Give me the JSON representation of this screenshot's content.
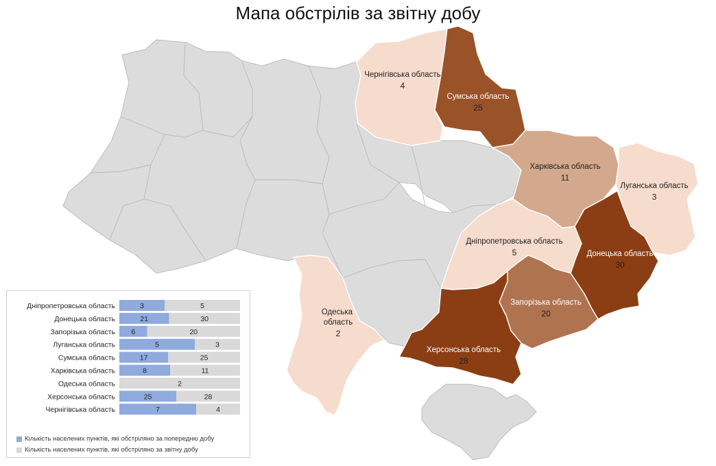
{
  "title": "Мапа обстрілів за звітну добу",
  "colors": {
    "grey": "#dcdcdc",
    "scale_low": "#f6dccd",
    "scale_mid": "#d3a88c",
    "scale_high": "#9a5228",
    "scale_max": "#8b3e13",
    "bar_prev": "#8faadc",
    "bar_curr": "#d9d9d9"
  },
  "map_regions": [
    {
      "id": "chernihiv",
      "name": "Чернігівська область",
      "value": "4"
    },
    {
      "id": "sumy",
      "name": "Сумська область",
      "value": "25"
    },
    {
      "id": "kharkiv",
      "name": "Харківська область",
      "value": "11"
    },
    {
      "id": "luhansk",
      "name": "Луганська область",
      "value": "3"
    },
    {
      "id": "dnipro",
      "name": "Дніпропетровська область",
      "value": "5"
    },
    {
      "id": "donetsk",
      "name": "Донецька область",
      "value": "30"
    },
    {
      "id": "zaporizhzhia",
      "name": "Запорізька область",
      "value": "20"
    },
    {
      "id": "kherson",
      "name": "Херсонська область",
      "value": "28"
    },
    {
      "id": "odesa",
      "name": "Одеська\nобласть",
      "value": "2"
    }
  ],
  "chart_data": {
    "type": "bar",
    "orientation": "horizontal",
    "stacked": true,
    "categories": [
      "Дніпропетровська область",
      "Донецька область",
      "Запорізька область",
      "Луганська область",
      "Сумська область",
      "Харківська область",
      "Одеська область",
      "Херсонська область",
      "Чернігівська область"
    ],
    "series": [
      {
        "name": "Кількість населених пунктів, які обстріляно за попередню добу",
        "values": [
          3,
          21,
          6,
          5,
          17,
          8,
          0,
          25,
          7
        ]
      },
      {
        "name": "Кількість населених пунктів, які обстріляно за звітну добу",
        "values": [
          5,
          30,
          20,
          3,
          25,
          11,
          2,
          28,
          4
        ]
      }
    ],
    "normalized_100_percent": true,
    "legend_position": "bottom"
  }
}
